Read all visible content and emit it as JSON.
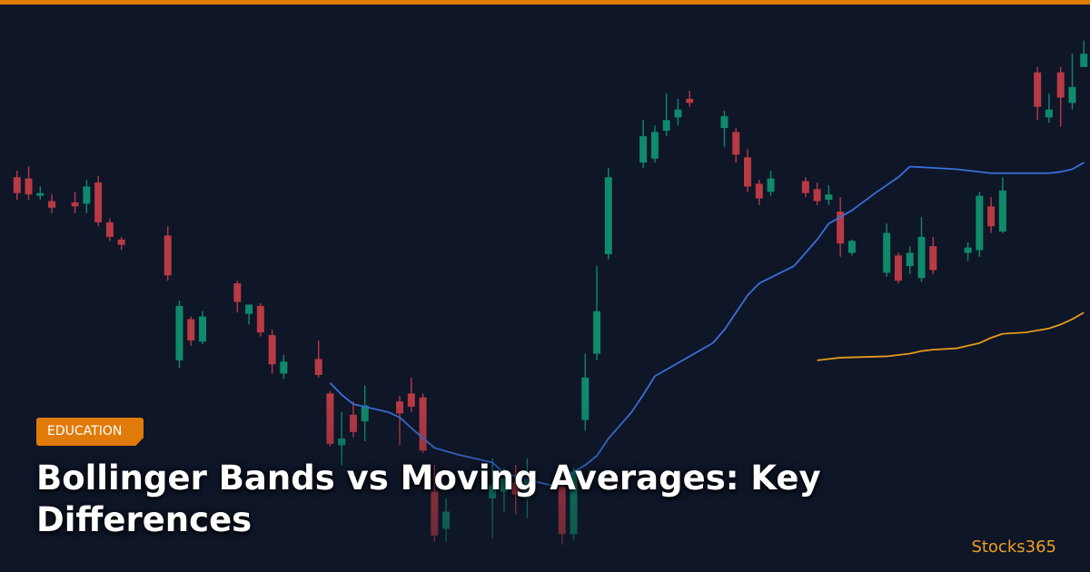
{
  "colors": {
    "background": "#0e1628",
    "accent": "#e07b0a",
    "bull": "#0f8a6a",
    "bear": "#b83a44",
    "band_line": "#3b6fd8",
    "ma_line": "#e39a1c",
    "brand": "#f0a020"
  },
  "badge": {
    "label": "EDUCATION"
  },
  "article": {
    "title": "Bollinger Bands vs Moving Averages: Key Differences"
  },
  "brand": {
    "name": "Stocks365"
  },
  "chart_data": {
    "type": "candlestick",
    "note_axes": "no axes printed; values in arbitrary price units (higher = higher price)",
    "candles": [
      {
        "x": 1,
        "open": 35,
        "close": 47,
        "high": 52,
        "low": 30,
        "bull": false
      },
      {
        "x": 2,
        "open": 34,
        "close": 46,
        "high": 55,
        "low": 30,
        "bull": false
      },
      {
        "x": 3,
        "open": 33,
        "close": 35,
        "high": 40,
        "low": 30,
        "bull": true
      },
      {
        "x": 4,
        "open": 29,
        "close": 24,
        "high": 34,
        "low": 20,
        "bull": false
      },
      {
        "x": 6,
        "open": 25,
        "close": 28,
        "high": 36,
        "low": 20,
        "bull": false
      },
      {
        "x": 7,
        "open": 27,
        "close": 40,
        "high": 45,
        "low": 20,
        "bull": true
      },
      {
        "x": 8,
        "open": 43,
        "close": 13,
        "high": 48,
        "low": 10,
        "bull": false
      },
      {
        "x": 9,
        "open": 13,
        "close": 2,
        "high": 16,
        "low": -1,
        "bull": false
      },
      {
        "x": 10,
        "open": 0,
        "close": -4,
        "high": 2,
        "low": -8,
        "bull": false
      },
      {
        "x": 14,
        "open": 3,
        "close": -27,
        "high": 10,
        "low": -31,
        "bull": false
      },
      {
        "x": 15,
        "open": -50,
        "close": -91,
        "high": -46,
        "low": -97,
        "bull": true
      },
      {
        "x": 16,
        "open": -60,
        "close": -76,
        "high": -58,
        "low": -80,
        "bull": false
      },
      {
        "x": 17,
        "open": -58,
        "close": -77,
        "high": -54,
        "low": -79,
        "bull": true
      },
      {
        "x": 20,
        "open": -33,
        "close": -47,
        "high": -31,
        "low": -55,
        "bull": false
      },
      {
        "x": 21,
        "open": -49,
        "close": -56,
        "high": -49,
        "low": -64,
        "bull": true
      },
      {
        "x": 22,
        "open": -50,
        "close": -70,
        "high": -48,
        "low": -73,
        "bull": false
      },
      {
        "x": 23,
        "open": -72,
        "close": -94,
        "high": -68,
        "low": -101,
        "bull": false
      },
      {
        "x": 24,
        "open": -92,
        "close": -101,
        "high": -87,
        "low": -105,
        "bull": true
      },
      {
        "x": 27,
        "open": -90,
        "close": -102,
        "high": -76,
        "low": -104,
        "bull": false
      },
      {
        "x": 28,
        "open": -116,
        "close": -154,
        "high": -114,
        "low": -156,
        "bull": false
      },
      {
        "x": 29,
        "open": -150,
        "close": -155,
        "high": -130,
        "low": -170,
        "bull": true
      },
      {
        "x": 30,
        "open": -132,
        "close": -145,
        "high": -122,
        "low": -149,
        "bull": false
      },
      {
        "x": 31,
        "open": -125,
        "close": -137,
        "high": -110,
        "low": -152,
        "bull": true
      },
      {
        "x": 34,
        "open": -122,
        "close": -131,
        "high": -118,
        "low": -155,
        "bull": false
      },
      {
        "x": 35,
        "open": -116,
        "close": -126,
        "high": -104,
        "low": -130,
        "bull": false
      },
      {
        "x": 36,
        "open": -119,
        "close": -159,
        "high": -116,
        "low": -161,
        "bull": false
      },
      {
        "x": 37,
        "open": -190,
        "close": -223,
        "high": -170,
        "low": -228,
        "bull": false
      },
      {
        "x": 38,
        "open": -205,
        "close": -218,
        "high": -195,
        "low": -228,
        "bull": true
      },
      {
        "x": 42,
        "open": -185,
        "close": -195,
        "high": -165,
        "low": -225,
        "bull": true
      },
      {
        "x": 43,
        "open": -180,
        "close": -190,
        "high": -172,
        "low": -205,
        "bull": true
      },
      {
        "x": 44,
        "open": -183,
        "close": -192,
        "high": -170,
        "low": -207,
        "bull": false
      },
      {
        "x": 45,
        "open": -180,
        "close": -195,
        "high": -165,
        "low": -210,
        "bull": true
      },
      {
        "x": 48,
        "open": -185,
        "close": -222,
        "high": -182,
        "low": -230,
        "bull": false
      },
      {
        "x": 49,
        "open": -222,
        "close": -175,
        "high": -172,
        "low": -227,
        "bull": true
      },
      {
        "x": 50,
        "open": -136,
        "close": -104,
        "high": -86,
        "low": -144,
        "bull": true
      },
      {
        "x": 51,
        "open": -86,
        "close": -54,
        "high": -20,
        "low": -91,
        "bull": true
      },
      {
        "x": 52,
        "open": -11,
        "close": 47,
        "high": 54,
        "low": -15,
        "bull": true
      },
      {
        "x": 55,
        "open": 58,
        "close": 78,
        "high": 90,
        "low": 54,
        "bull": true
      },
      {
        "x": 56,
        "open": 61,
        "close": 81,
        "high": 86,
        "low": 58,
        "bull": true
      },
      {
        "x": 57,
        "open": 82,
        "close": 90,
        "high": 110,
        "low": 78,
        "bull": true
      },
      {
        "x": 58,
        "open": 92,
        "close": 98,
        "high": 106,
        "low": 86,
        "bull": true
      },
      {
        "x": 59,
        "open": 103,
        "close": 106,
        "high": 112,
        "low": 100,
        "bull": false
      },
      {
        "x": 62,
        "open": 84,
        "close": 93,
        "high": 97,
        "low": 70,
        "bull": true
      },
      {
        "x": 63,
        "open": 81,
        "close": 64,
        "high": 84,
        "low": 58,
        "bull": false
      },
      {
        "x": 64,
        "open": 62,
        "close": 40,
        "high": 68,
        "low": 36,
        "bull": false
      },
      {
        "x": 65,
        "open": 42,
        "close": 31,
        "high": 45,
        "low": 26,
        "bull": false
      },
      {
        "x": 66,
        "open": 36,
        "close": 46,
        "high": 52,
        "low": 33,
        "bull": true
      },
      {
        "x": 69,
        "open": 44,
        "close": 35,
        "high": 47,
        "low": 32,
        "bull": false
      },
      {
        "x": 70,
        "open": 38,
        "close": 29,
        "high": 43,
        "low": 26,
        "bull": false
      },
      {
        "x": 71,
        "open": 30,
        "close": 34,
        "high": 41,
        "low": 26,
        "bull": true
      },
      {
        "x": 72,
        "open": 21,
        "close": -3,
        "high": 32,
        "low": -13,
        "bull": false
      },
      {
        "x": 73,
        "open": -10,
        "close": -1,
        "high": 0,
        "low": -12,
        "bull": true
      },
      {
        "x": 76,
        "open": -25,
        "close": 5,
        "high": 12,
        "low": -28,
        "bull": true
      },
      {
        "x": 77,
        "open": -12,
        "close": -31,
        "high": -10,
        "low": -33,
        "bull": false
      },
      {
        "x": 78,
        "open": -20,
        "close": -10,
        "high": -5,
        "low": -26,
        "bull": true
      },
      {
        "x": 79,
        "open": -29,
        "close": 2,
        "high": 17,
        "low": -32,
        "bull": true
      },
      {
        "x": 80,
        "open": -5,
        "close": -23,
        "high": 2,
        "low": -26,
        "bull": false
      },
      {
        "x": 83,
        "open": -6,
        "close": -10,
        "high": -2,
        "low": -16,
        "bull": true
      },
      {
        "x": 84,
        "open": -8,
        "close": 33,
        "high": 36,
        "low": -13,
        "bull": true
      },
      {
        "x": 85,
        "open": 25,
        "close": 10,
        "high": 32,
        "low": 5,
        "bull": false
      },
      {
        "x": 86,
        "open": 6,
        "close": 37,
        "high": 47,
        "low": 5,
        "bull": true
      },
      {
        "x": 89,
        "open": 126,
        "close": 100,
        "high": 130,
        "low": 90,
        "bull": false
      },
      {
        "x": 90,
        "open": 92,
        "close": 98,
        "high": 110,
        "low": 88,
        "bull": true
      },
      {
        "x": 91,
        "open": 107,
        "close": 126,
        "high": 130,
        "low": 85,
        "bull": false
      },
      {
        "x": 92,
        "open": 103,
        "close": 115,
        "high": 140,
        "low": 98,
        "bull": true
      },
      {
        "x": 93,
        "open": 130,
        "close": 140,
        "high": 150,
        "low": 130,
        "bull": true
      }
    ],
    "series": [
      {
        "values_x": [
          28,
          29,
          30,
          33,
          34,
          35,
          37,
          39,
          42,
          43,
          46,
          47,
          48,
          49,
          50,
          51,
          52,
          54,
          55,
          56,
          58,
          61,
          62,
          63,
          64,
          65,
          68,
          70,
          71,
          73,
          75,
          77,
          78,
          82,
          85,
          89,
          90,
          91,
          92,
          93
        ],
        "values_y": [
          -108,
          -117,
          -124,
          -130,
          -134,
          -142,
          -157,
          -162,
          -168,
          -176,
          -183,
          -185,
          -185,
          -175,
          -170,
          -163,
          -150,
          -130,
          -117,
          -103,
          -93,
          -78,
          -68,
          -55,
          -42,
          -33,
          -20,
          0,
          12,
          22,
          35,
          47,
          55,
          53,
          50,
          50,
          50,
          51,
          53,
          58
        ]
      },
      {
        "values_x": [
          70,
          71,
          72,
          76,
          78,
          79,
          80,
          82,
          84,
          85,
          86,
          88,
          90,
          91,
          92,
          93
        ],
        "values_y": [
          -91,
          -90,
          -89,
          -88,
          -86,
          -84,
          -83,
          -82,
          -78,
          -74,
          -71,
          -70,
          -67,
          -64,
          -60,
          -55
        ]
      }
    ],
    "ylim": [
      -230,
      160
    ],
    "xlim": [
      0,
      94
    ],
    "grid": false,
    "legend": "none"
  }
}
